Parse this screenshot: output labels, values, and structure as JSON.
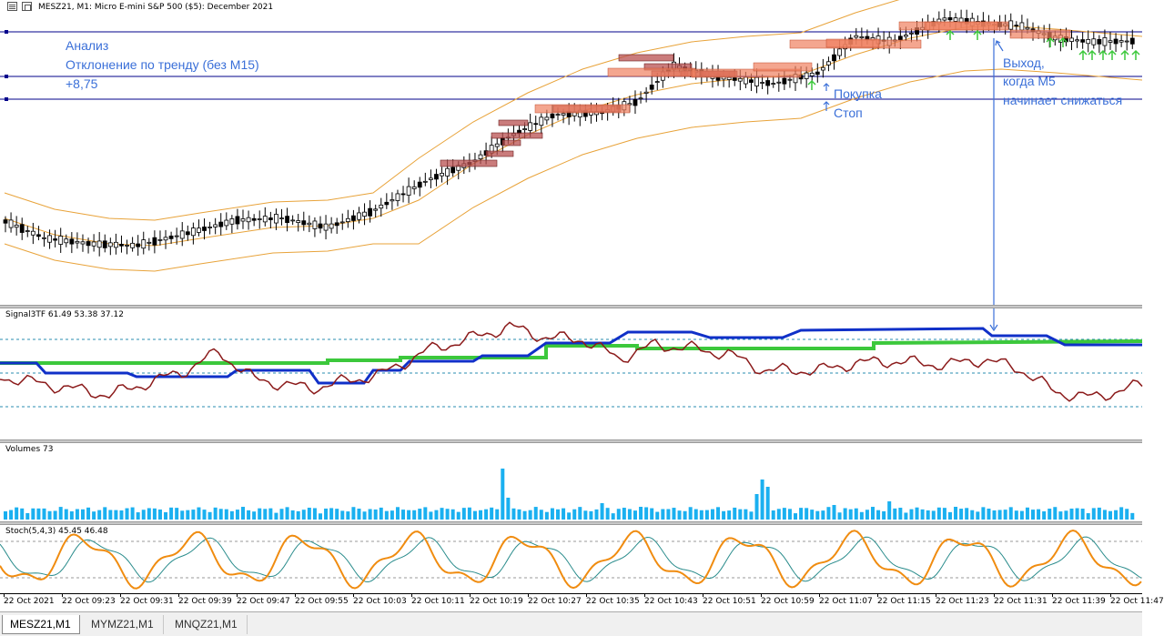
{
  "chart_window": {
    "title": "MESZ21, M1:  Micro E-mini S&P 500 ($5): December 2021"
  },
  "analysis_note": {
    "line1": "Анализ",
    "line2": "Отклонение по тренду (без М15)",
    "line3": "+8,75"
  },
  "annotations": {
    "buy": "Покупка",
    "stop": "Стоп",
    "exit_line1": "Выход,",
    "exit_line2": "когда М5",
    "exit_line3": "начинает снижаться"
  },
  "panes": {
    "signal": "Signal3TF 61.49 53.38 37.12",
    "volumes": "Volumes 73",
    "stoch": "Stoch(5,4,3) 45.45 46.48"
  },
  "colors": {
    "background": "#ffffff",
    "level_lines": "#00008b",
    "bollinger": "#e8a33a",
    "note_text": "#3a6fd8",
    "signal_m1": "#8b1a1a",
    "signal_m5": "#1030c8",
    "signal_m15": "#3cc83c",
    "volume_bars": "#1ab0f0",
    "stoch_main": "#f08c10",
    "stoch_signal": "#2a8c8c",
    "zone_dark": "#b85050",
    "zone_light": "#f08060",
    "arrow_up": "#3cc83c"
  },
  "time_axis": [
    "22 Oct 2021",
    "22 Oct 09:23",
    "22 Oct 09:31",
    "22 Oct 09:39",
    "22 Oct 09:47",
    "22 Oct 09:55",
    "22 Oct 10:03",
    "22 Oct 10:11",
    "22 Oct 10:19",
    "22 Oct 10:27",
    "22 Oct 10:35",
    "22 Oct 10:43",
    "22 Oct 10:51",
    "22 Oct 10:59",
    "22 Oct 11:07",
    "22 Oct 11:15",
    "22 Oct 11:23",
    "22 Oct 11:31",
    "22 Oct 11:39",
    "22 Oct 11:47"
  ],
  "tabs": [
    {
      "label": "MESZ21,M1",
      "active": true
    },
    {
      "label": "MYMZ21,M1",
      "active": false
    },
    {
      "label": "MNQZ21,M1",
      "active": false
    }
  ]
}
